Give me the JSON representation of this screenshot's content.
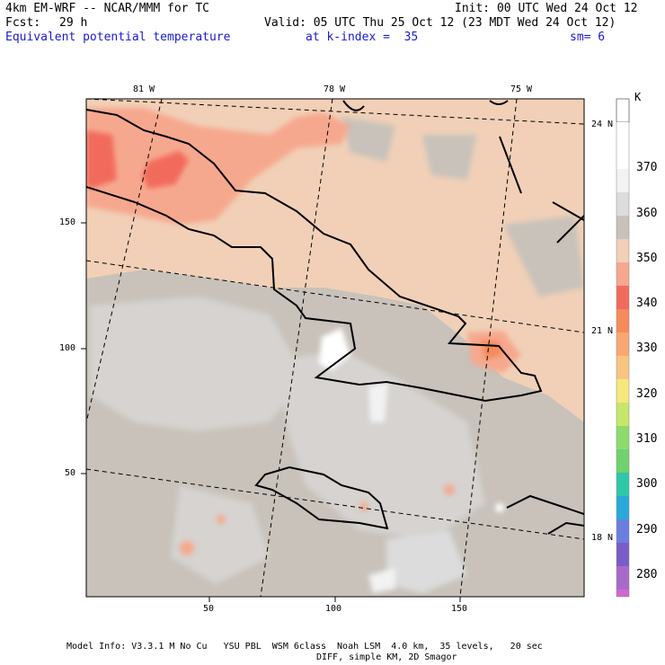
{
  "header": {
    "model": "4km EM-WRF -- NCAR/MMM for TC",
    "init": "Init: 00 UTC Wed 24 Oct 12",
    "fcst_label": "Fcst:",
    "fcst_value": "29 h",
    "valid": "Valid: 05 UTC Thu 25 Oct 12 (23 MDT Wed 24 Oct 12)",
    "field": "Equivalent potential temperature",
    "level": "at k-index =  35",
    "smooth": "sm= 6"
  },
  "map": {
    "lon_labels": [
      "81 W",
      "78 W",
      "75 W"
    ],
    "lat_labels": [
      "24 N",
      "21 N",
      "18 N"
    ],
    "x_ticks": [
      "50",
      "100",
      "150"
    ],
    "y_ticks": [
      "150",
      "100",
      "50"
    ]
  },
  "colorbar": {
    "unit": "K",
    "labels": [
      "370",
      "360",
      "350",
      "340",
      "330",
      "320",
      "310",
      "300",
      "290",
      "280"
    ],
    "colors": [
      "#ffffff",
      "#f2f2f2",
      "#dcdcdc",
      "#c8c2ba",
      "#f1d0b7",
      "#f6a88e",
      "#f26a5b",
      "#f58a5a",
      "#f8c581",
      "#f6e87d",
      "#c8e66a",
      "#6fd26e",
      "#2cc8a8",
      "#2aa8d8",
      "#6a7ee0",
      "#7a5cc8",
      "#a86ac8",
      "#d266d2"
    ]
  },
  "footer": {
    "line1": "Model Info: V3.3.1 M No Cu   YSU PBL  WSM 6class  Noah LSM  4.0 km,  35 levels,   20 sec",
    "line2": "DIFF, simple KM, 2D Smagor"
  }
}
